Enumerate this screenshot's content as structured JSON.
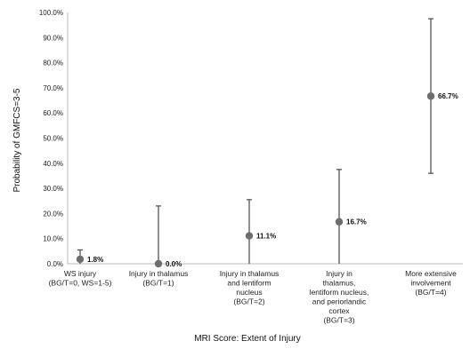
{
  "chart_data": {
    "type": "scatter",
    "xlabel": "MRI Score: Extent of Injury",
    "ylabel": "Probability of GMFCS=3-5",
    "ylim": [
      0,
      100
    ],
    "yticks": [
      "0.0%",
      "10.0%",
      "20.0%",
      "30.0%",
      "40.0%",
      "50.0%",
      "60.0%",
      "70.0%",
      "80.0%",
      "90.0%",
      "100.0%"
    ],
    "grid": false,
    "error_bars": true,
    "categories": [
      [
        "WS injury",
        "(BG/T=0, WS=1-5)"
      ],
      [
        "Injury in thalamus",
        "(BG/T=1)"
      ],
      [
        "Injury in thalamus",
        "and lentiform",
        "nucleus",
        "(BG/T=2)"
      ],
      [
        "Injury in",
        "thalamus,",
        "lentiform nucleus,",
        "and periorlandic",
        "cortex",
        "(BG/T=3)"
      ],
      [
        "More extensive",
        "involvement",
        "(BG/T=4)"
      ]
    ],
    "values": [
      1.8,
      0.0,
      11.1,
      16.7,
      66.7
    ],
    "lower": [
      0.0,
      0.0,
      0.0,
      0.0,
      36.0
    ],
    "upper": [
      5.5,
      23.0,
      25.5,
      37.5,
      97.5
    ],
    "value_labels": [
      "1.8%",
      "0.0%",
      "11.1%",
      "16.7%",
      "66.7%"
    ],
    "colors": {
      "point": "#6e6e6e",
      "bar": "#555555",
      "axis": "#bbbbbb"
    }
  }
}
